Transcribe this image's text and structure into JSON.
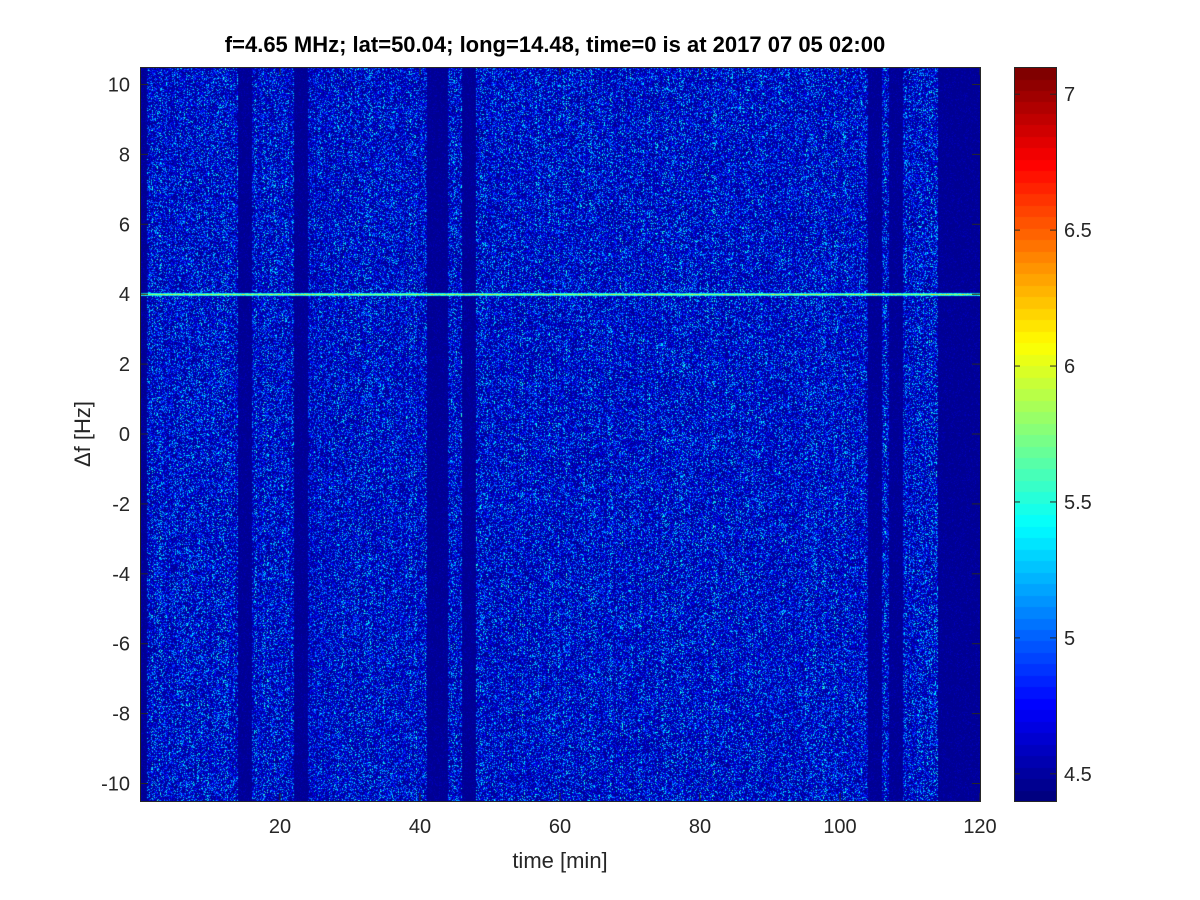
{
  "chart_data": {
    "type": "heatmap",
    "title": "f=4.65 MHz;  lat=50.04; long=14.48, time=0 is at 2017 07 05 02:00",
    "xlabel": "time [min]",
    "ylabel": "Δf [Hz]",
    "xlim": [
      0,
      120
    ],
    "ylim": [
      -10.5,
      10.5
    ],
    "xticks": [
      20,
      40,
      60,
      80,
      100,
      120
    ],
    "xtick_labels": [
      "20",
      "40",
      "60",
      "80",
      "100",
      "120"
    ],
    "yticks": [
      -10,
      -8,
      -6,
      -4,
      -2,
      0,
      2,
      4,
      6,
      8,
      10
    ],
    "ytick_labels": [
      "-10",
      "-8",
      "-6",
      "-4",
      "-2",
      "0",
      "2",
      "4",
      "6",
      "8",
      "10"
    ],
    "colormap": "jet",
    "clim": [
      4.4,
      7.1
    ],
    "colorbar_ticks": [
      4.5,
      5,
      5.5,
      6,
      6.5,
      7
    ],
    "colorbar_tick_labels": [
      "4.5",
      "5",
      "5.5",
      "6",
      "6.5",
      "7"
    ],
    "background_level": 4.45,
    "noise_level_range": [
      4.45,
      5.6
    ],
    "carrier_line": {
      "delta_f": 4.0,
      "level": 5.9,
      "from_time": 0,
      "to_time": 120
    },
    "quiet_time_ranges": [
      [
        0,
        1
      ],
      [
        14,
        16
      ],
      [
        22,
        24
      ],
      [
        41,
        44
      ],
      [
        46,
        48
      ],
      [
        104,
        106
      ],
      [
        107,
        109
      ],
      [
        114,
        120
      ]
    ],
    "active_time_ranges": [
      [
        1,
        14
      ],
      [
        16,
        22
      ],
      [
        24,
        41
      ],
      [
        44,
        46
      ],
      [
        48,
        104
      ],
      [
        106,
        107
      ],
      [
        109,
        114
      ]
    ]
  }
}
